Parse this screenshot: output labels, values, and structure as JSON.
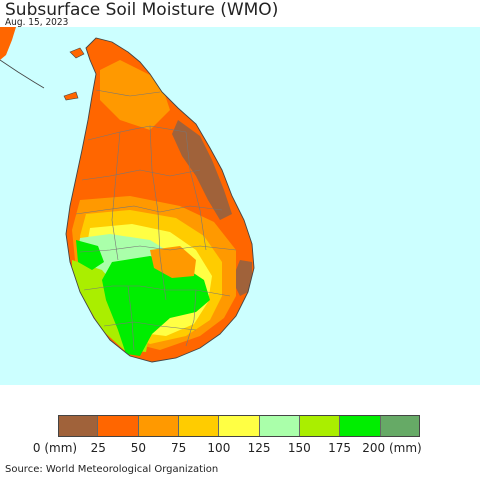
{
  "map": {
    "title": "Subsurface Soil Moisture (WMO)",
    "date": "Aug. 15, 2023",
    "region": "Sri Lanka",
    "ocean_color": "#ccffff",
    "source": "Source: World Meteorological Organization"
  },
  "legend": {
    "colors": [
      "#a0623a",
      "#ff6600",
      "#ff9900",
      "#ffcc00",
      "#ffff44",
      "#aaffaa",
      "#aaee00",
      "#00ee00",
      "#66aa66"
    ],
    "labels": [
      "0 (mm)",
      "25",
      "50",
      "75",
      "100",
      "125",
      "150",
      "175",
      "200 (mm)"
    ]
  }
}
